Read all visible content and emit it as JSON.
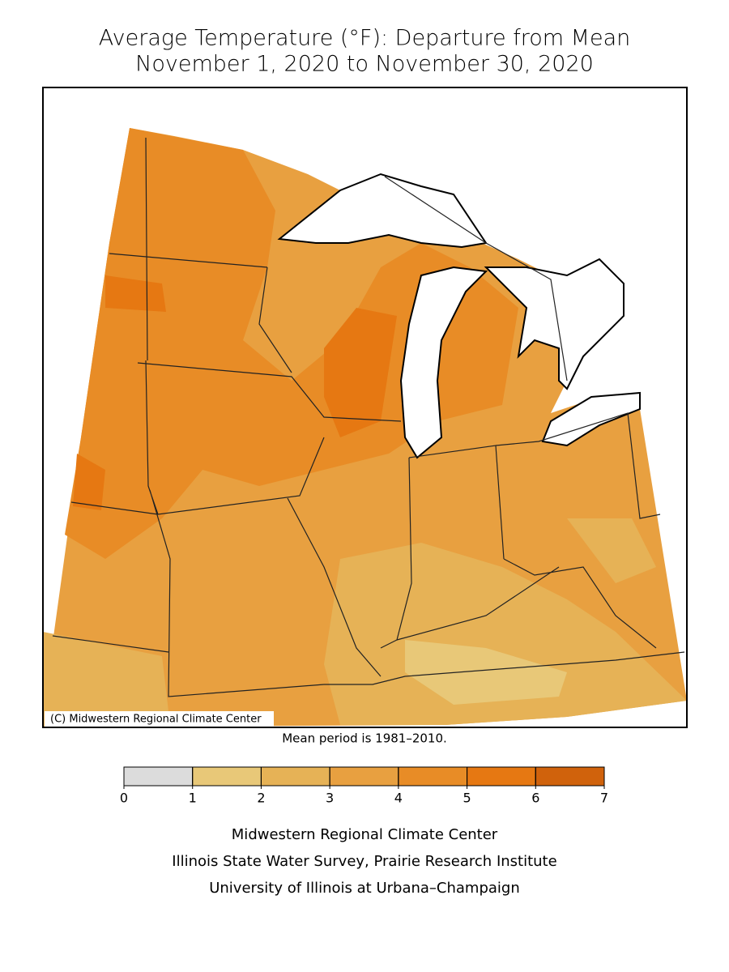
{
  "header": {
    "title": [
      "Average Temperature (°F): Departure from Mean",
      "November 1, 2020 to November 30, 2020"
    ]
  },
  "map": {
    "copyright": "(C) Midwestern Regional Climate Center",
    "note": "Mean period is 1981–2010."
  },
  "legend": {
    "ticks": [
      0,
      1,
      2,
      3,
      4,
      5,
      6,
      7
    ],
    "colors": [
      "#dcdcdc",
      "#e8c878",
      "#e6b256",
      "#e8a040",
      "#e88c26",
      "#e67812",
      "#d0620c"
    ]
  },
  "footer": {
    "lines": [
      "Midwestern Regional Climate Center",
      "Illinois State Water Survey, Prairie Research Institute",
      "University of Illinois at Urbana–Champaign"
    ]
  }
}
